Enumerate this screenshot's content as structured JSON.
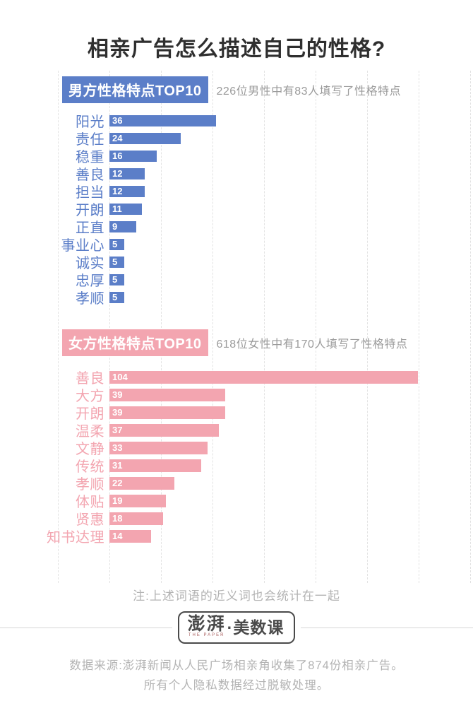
{
  "title": "相亲广告怎么描述自己的性格?",
  "colors": {
    "male_accent": "#5b7ec8",
    "female_accent": "#f3a5b0",
    "title_text": "#2f2f2f",
    "subtitle_text": "#9b9b9b",
    "note_text": "#b3b3b3",
    "gridline": "#e2e2e2",
    "logo_text": "#4a4a4a",
    "bar_value_text": "#ffffff"
  },
  "chart_data": [
    {
      "type": "bar",
      "orientation": "horizontal",
      "title_label": "男方性格特点TOP10",
      "subtitle": "226位男性中有83人填写了性格特点",
      "bar_color": "#5b7ec8",
      "grid": "dashed-vertical",
      "categories": [
        "阳光",
        "责任",
        "稳重",
        "善良",
        "担当",
        "开朗",
        "正直",
        "事业心",
        "诚实",
        "忠厚",
        "孝顺"
      ],
      "values": [
        36,
        24,
        16,
        12,
        12,
        11,
        9,
        5,
        5,
        5,
        5
      ]
    },
    {
      "type": "bar",
      "orientation": "horizontal",
      "title_label": "女方性格特点TOP10",
      "subtitle": "618位女性中有170人填写了性格特点",
      "bar_color": "#f3a5b0",
      "grid": "dashed-vertical",
      "categories": [
        "善良",
        "大方",
        "开朗",
        "温柔",
        "文静",
        "传统",
        "孝顺",
        "体贴",
        "贤惠",
        "知书达理"
      ],
      "values": [
        104,
        39,
        39,
        37,
        33,
        31,
        22,
        19,
        18,
        14
      ]
    }
  ],
  "note": "注:上述词语的近义词也会统计在一起",
  "logo": {
    "brand": "澎湃",
    "brand_sub": "THE PAPER",
    "suffix": "·美数课"
  },
  "footer": {
    "line1": "数据来源:澎湃新闻从人民广场相亲角收集了874份相亲广告。",
    "line2": "所有个人隐私数据经过脱敏处理。"
  }
}
